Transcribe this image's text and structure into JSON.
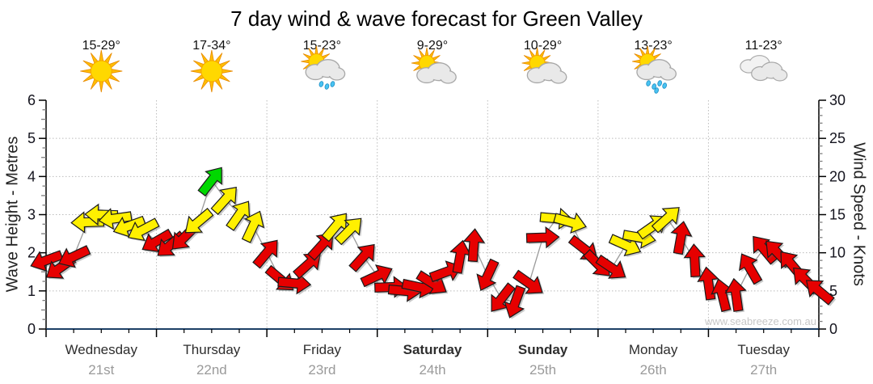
{
  "title": "7 day wind & wave forecast for Green Valley",
  "watermark": "www.seabreeze.com.au",
  "colors": {
    "axis_line": "#000000",
    "x_axis_line": "#1d4066",
    "grid": "#bbbbbb",
    "tick_label": "#14141e",
    "day_name": "#2e2e2e",
    "day_date": "#9a9a9a",
    "temp": "#111111",
    "connector": "#9a9a9a",
    "arrow_outline": "#1a1a1a"
  },
  "chart_data": {
    "type": "wind-arrow-timeseries",
    "title": "7 day wind & wave forecast for Green Valley",
    "left_axis": {
      "label": "Wave Height - Metres",
      "min": 0,
      "max": 6,
      "major_step": 1,
      "minor_step": 0.25
    },
    "right_axis": {
      "label": "Wind Speed - Knots",
      "min": 0,
      "max": 30,
      "major_step": 5,
      "minor_step": 1
    },
    "x_axis": {
      "hours_total": 168,
      "minor_tick_hours": 6,
      "major_tick_hours": 24,
      "grid_at_day_boundaries": true
    },
    "days": [
      {
        "name": "Wednesday",
        "date": "21st",
        "weekend": false,
        "temp": "15-29°",
        "icon": "sun"
      },
      {
        "name": "Thursday",
        "date": "22nd",
        "weekend": false,
        "temp": "17-34°",
        "icon": "sun"
      },
      {
        "name": "Friday",
        "date": "23rd",
        "weekend": false,
        "temp": "15-23°",
        "icon": "sun-cloud-rain"
      },
      {
        "name": "Saturday",
        "date": "24th",
        "weekend": true,
        "temp": "9-29°",
        "icon": "sun-cloud"
      },
      {
        "name": "Sunday",
        "date": "25th",
        "weekend": true,
        "temp": "10-29°",
        "icon": "sun-cloud"
      },
      {
        "name": "Monday",
        "date": "26th",
        "weekend": false,
        "temp": "13-23°",
        "icon": "sun-cloud-rain-heavy"
      },
      {
        "name": "Tuesday",
        "date": "27th",
        "weekend": false,
        "temp": "11-23°",
        "icon": "clouds"
      }
    ],
    "arrow_colors": {
      "r": "#e60000",
      "y": "#fff000",
      "g": "#00d800"
    },
    "arrow_point_format": [
      "hours_from_start",
      "wind_speed_knots",
      "direction_deg_arrow_points_0N_90E",
      "color_key"
    ],
    "arrows": [
      [
        0,
        9,
        250,
        "r"
      ],
      [
        3,
        8,
        235,
        "r"
      ],
      [
        6,
        9.5,
        245,
        "r"
      ],
      [
        9,
        14,
        268,
        "y"
      ],
      [
        12,
        15,
        272,
        "y"
      ],
      [
        15,
        14.5,
        262,
        "y"
      ],
      [
        18,
        13.5,
        250,
        "y"
      ],
      [
        21,
        13,
        242,
        "y"
      ],
      [
        24,
        11.5,
        240,
        "r"
      ],
      [
        27,
        11,
        230,
        "r"
      ],
      [
        30,
        12,
        225,
        "r"
      ],
      [
        33,
        14,
        230,
        "y"
      ],
      [
        36,
        19.5,
        38,
        "g"
      ],
      [
        39,
        17,
        42,
        "y"
      ],
      [
        42,
        15,
        35,
        "y"
      ],
      [
        45,
        13.5,
        25,
        "y"
      ],
      [
        48,
        10,
        40,
        "r"
      ],
      [
        51,
        6.5,
        130,
        "r"
      ],
      [
        54,
        6,
        95,
        "r"
      ],
      [
        57,
        8.5,
        48,
        "r"
      ],
      [
        60,
        11,
        42,
        "r"
      ],
      [
        63,
        13.5,
        40,
        "y"
      ],
      [
        66,
        13,
        45,
        "y"
      ],
      [
        69,
        9.5,
        42,
        "r"
      ],
      [
        72,
        7,
        65,
        "r"
      ],
      [
        75,
        5.5,
        88,
        "r"
      ],
      [
        78,
        5,
        95,
        "r"
      ],
      [
        81,
        5.5,
        102,
        "r"
      ],
      [
        84,
        6,
        122,
        "r"
      ],
      [
        87,
        7.5,
        70,
        "r"
      ],
      [
        90,
        9.5,
        10,
        "r"
      ],
      [
        93,
        11,
        4,
        "r"
      ],
      [
        96,
        7,
        205,
        "r"
      ],
      [
        99,
        4,
        218,
        "r"
      ],
      [
        102,
        3.5,
        200,
        "r"
      ],
      [
        105,
        6,
        125,
        "r"
      ],
      [
        108,
        12,
        88,
        "r"
      ],
      [
        111,
        14.5,
        95,
        "y"
      ],
      [
        114,
        14,
        106,
        "y"
      ],
      [
        117,
        10.5,
        128,
        "r"
      ],
      [
        120,
        8.5,
        135,
        "r"
      ],
      [
        123,
        8,
        124,
        "r"
      ],
      [
        126,
        11,
        114,
        "y"
      ],
      [
        129,
        12,
        100,
        "y"
      ],
      [
        132,
        13.5,
        55,
        "y"
      ],
      [
        135,
        14.5,
        48,
        "y"
      ],
      [
        138,
        12,
        10,
        "r"
      ],
      [
        141,
        9,
        357,
        "r"
      ],
      [
        144,
        6,
        352,
        "r"
      ],
      [
        147,
        4.5,
        346,
        "r"
      ],
      [
        150,
        4.5,
        352,
        "r"
      ],
      [
        153,
        8,
        330,
        "r"
      ],
      [
        156,
        10.5,
        320,
        "r"
      ],
      [
        159,
        10,
        316,
        "r"
      ],
      [
        162,
        8.5,
        320,
        "r"
      ],
      [
        165,
        6.5,
        315,
        "r"
      ],
      [
        168,
        5,
        310,
        "r"
      ]
    ]
  }
}
